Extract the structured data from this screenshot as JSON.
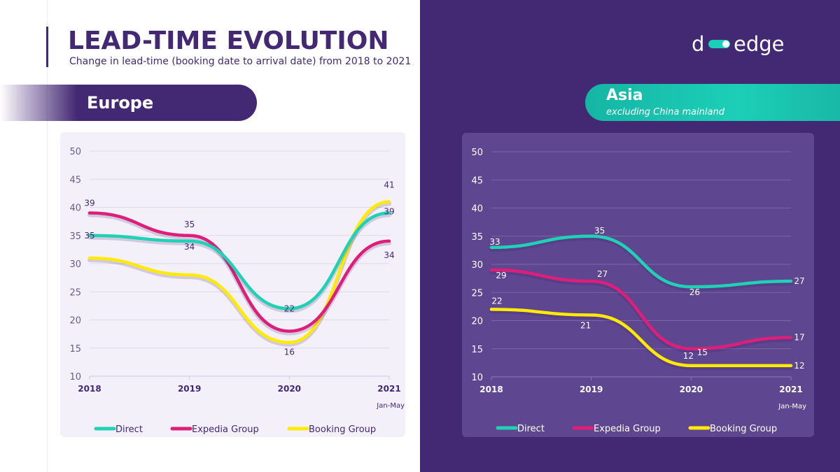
{
  "header": {
    "title": "LEAD-TIME EVOLUTION",
    "subtitle": "Change in lead-time (booking date to arrival date) from 2018 to 2021"
  },
  "logo": {
    "text": "d  edge",
    "icon": "toggle-pill-icon"
  },
  "regions": {
    "europe": {
      "label": "Europe"
    },
    "asia": {
      "label": "Asia",
      "sublabel": "excluding China mainland"
    }
  },
  "colors": {
    "direct": "#1fd1b5",
    "expedia": "#de1f7a",
    "booking": "#ffeb00",
    "brand_purple": "#432873",
    "teal": "#1ccfb8"
  },
  "chart_data": [
    {
      "type": "line",
      "region": "Europe",
      "x": [
        "2018",
        "2019",
        "2020",
        "2021"
      ],
      "x_sublabels": [
        "",
        "",
        "",
        "Jan-May"
      ],
      "ylim": [
        10,
        50
      ],
      "yticks": [
        10,
        15,
        20,
        25,
        30,
        35,
        40,
        45,
        50
      ],
      "grid": true,
      "legend_position": "bottom",
      "series": [
        {
          "name": "Direct",
          "values": [
            35,
            34,
            22,
            39
          ]
        },
        {
          "name": "Expedia Group",
          "values": [
            39,
            35,
            18,
            34
          ]
        },
        {
          "name": "Booking Group",
          "values": [
            31,
            28,
            16,
            41
          ]
        }
      ],
      "data_labels": [
        {
          "text": "35",
          "series": "Direct",
          "x": "2018"
        },
        {
          "text": "34",
          "series": "Direct",
          "x": "2019"
        },
        {
          "text": "22",
          "series": "Direct",
          "x": "2020"
        },
        {
          "text": "39",
          "series": "Direct",
          "x": "2021"
        },
        {
          "text": "39",
          "series": "Expedia Group",
          "x": "2018"
        },
        {
          "text": "35",
          "series": "Expedia Group",
          "x": "2019"
        },
        {
          "text": "34",
          "series": "Expedia Group",
          "x": "2021"
        },
        {
          "text": "16",
          "series": "Booking Group",
          "x": "2020"
        },
        {
          "text": "41",
          "series": "Booking Group",
          "x": "2021"
        }
      ]
    },
    {
      "type": "line",
      "region": "Asia",
      "x": [
        "2018",
        "2019",
        "2020",
        "2021"
      ],
      "x_sublabels": [
        "",
        "",
        "",
        "Jan-May"
      ],
      "ylim": [
        10,
        50
      ],
      "yticks": [
        10,
        15,
        20,
        25,
        30,
        35,
        40,
        45,
        50
      ],
      "grid": true,
      "legend_position": "bottom",
      "series": [
        {
          "name": "Direct",
          "values": [
            33,
            35,
            26,
            27
          ]
        },
        {
          "name": "Expedia Group",
          "values": [
            29,
            27,
            15,
            17
          ]
        },
        {
          "name": "Booking Group",
          "values": [
            22,
            21,
            12,
            12
          ]
        }
      ],
      "data_labels": [
        {
          "text": "33",
          "series": "Direct",
          "x": "2018"
        },
        {
          "text": "35",
          "series": "Direct",
          "x": "2019"
        },
        {
          "text": "26",
          "series": "Direct",
          "x": "2020"
        },
        {
          "text": "27",
          "series": "Direct",
          "x": "2021"
        },
        {
          "text": "29",
          "series": "Expedia Group",
          "x": "2018"
        },
        {
          "text": "27",
          "series": "Expedia Group",
          "x": "2019"
        },
        {
          "text": "15",
          "series": "Expedia Group",
          "x": "2020"
        },
        {
          "text": "17",
          "series": "Expedia Group",
          "x": "2021"
        },
        {
          "text": "22",
          "series": "Booking Group",
          "x": "2018"
        },
        {
          "text": "21",
          "series": "Booking Group",
          "x": "2019"
        },
        {
          "text": "12",
          "series": "Booking Group",
          "x": "2020"
        },
        {
          "text": "12",
          "series": "Booking Group",
          "x": "2021"
        }
      ]
    }
  ]
}
